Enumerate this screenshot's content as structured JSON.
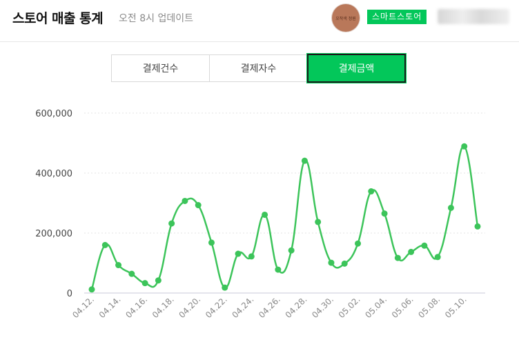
{
  "header": {
    "title": "스토어 매출 통계",
    "subtitle": "오전 8시 업데이트",
    "avatar_text": "오작색 정원",
    "store_badge": "스마트스토어",
    "store_name": ""
  },
  "tabs": [
    {
      "label": "결제건수",
      "active": false
    },
    {
      "label": "결제자수",
      "active": false
    },
    {
      "label": "결제금액",
      "active": true
    }
  ],
  "colors": {
    "accent": "#03c75a",
    "line": "#3cc45a",
    "grid": "#e3e3e3"
  },
  "chart_data": {
    "type": "line",
    "x": [
      "04.12.",
      "04.13.",
      "04.14.",
      "04.15.",
      "04.16.",
      "04.17.",
      "04.18.",
      "04.19.",
      "04.20.",
      "04.21.",
      "04.22.",
      "04.23.",
      "04.24.",
      "04.25.",
      "04.26.",
      "04.27.",
      "04.28.",
      "04.29.",
      "04.30.",
      "05.01.",
      "05.02.",
      "05.03.",
      "05.04.",
      "05.05.",
      "05.06.",
      "05.07.",
      "05.08.",
      "05.09.",
      "05.10.",
      "05.11."
    ],
    "xticks": [
      "04.12.",
      "04.14.",
      "04.16.",
      "04.18.",
      "04.20.",
      "04.22.",
      "04.24.",
      "04.26.",
      "04.28.",
      "04.30.",
      "05.02.",
      "05.04.",
      "05.06.",
      "05.08.",
      "05.10."
    ],
    "values": [
      12000,
      160000,
      93000,
      64000,
      33000,
      42000,
      232000,
      307000,
      293000,
      168000,
      18000,
      131000,
      122000,
      261000,
      78000,
      142000,
      441000,
      237000,
      101000,
      98000,
      165000,
      339000,
      265000,
      117000,
      137000,
      158000,
      120000,
      284000,
      489000,
      222000
    ],
    "ylim": [
      0,
      600000
    ],
    "yticks": [
      "0",
      "200,000",
      "400,000",
      "600,000"
    ],
    "grid": true,
    "legend": "none"
  }
}
